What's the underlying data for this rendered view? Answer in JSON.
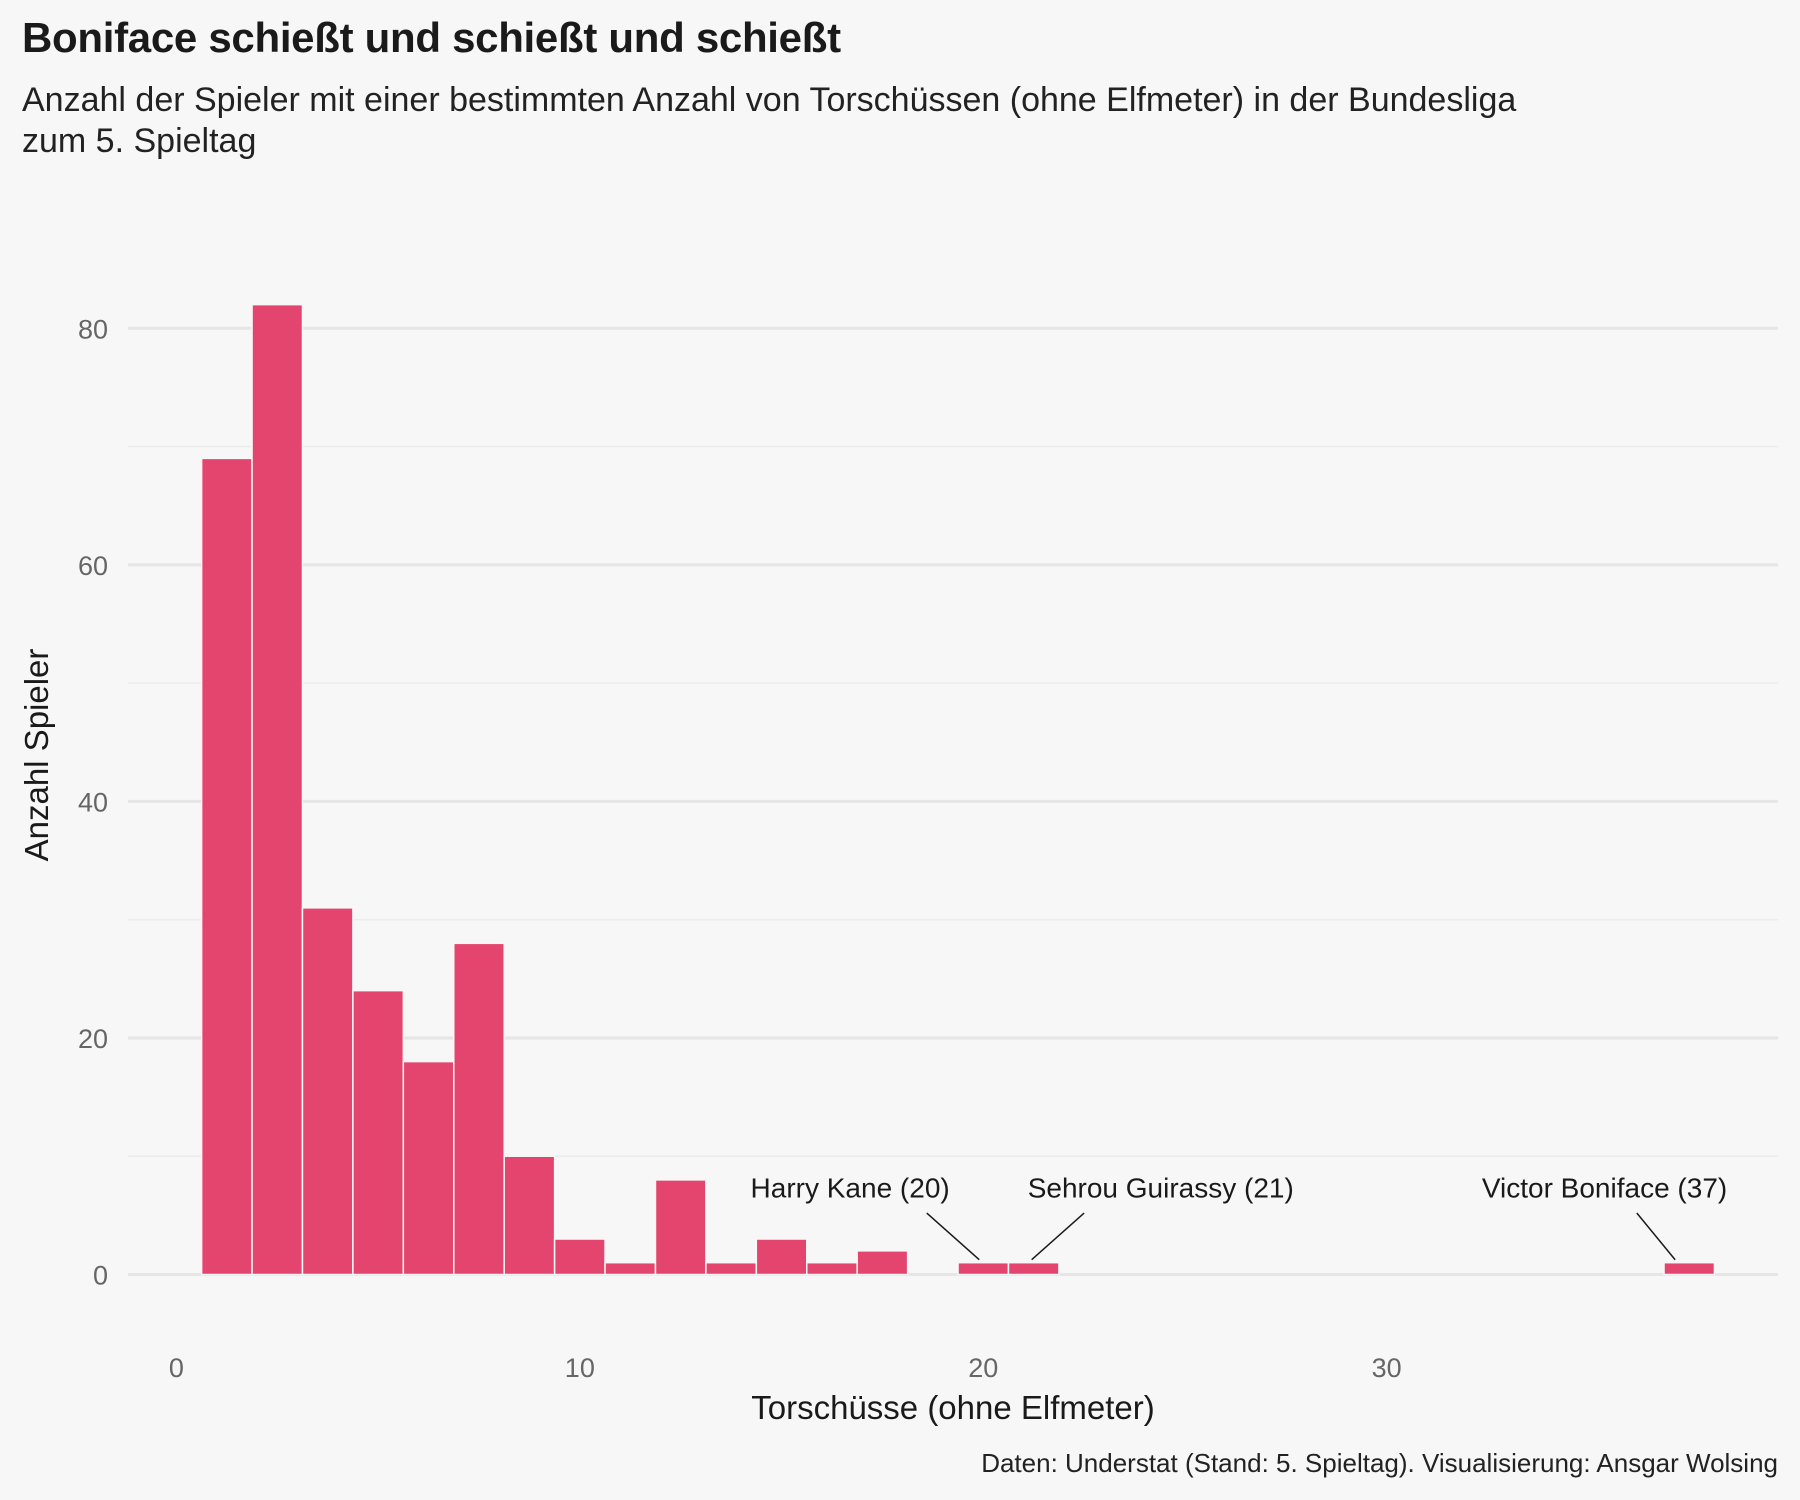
{
  "chart_data": {
    "type": "bar",
    "title": "Boniface schießt und schießt und schießt",
    "subtitle": "Anzahl der Spieler mit einer bestimmten Anzahl von Torschüssen (ohne Elfmeter) in der Bundesliga zum 5. Spieltag",
    "xlabel": "Torschüsse (ohne Elfmeter)",
    "ylabel": "Anzahl Spieler",
    "caption": "Daten: Understat (Stand: 5. Spieltag). Visualisierung: Ansgar Wolsing",
    "xlim": [
      -1.2,
      39.7
    ],
    "ylim": [
      -3,
      90
    ],
    "x_ticks": [
      0,
      10,
      20,
      30
    ],
    "y_ticks": [
      0,
      20,
      40,
      60,
      80
    ],
    "y_minor": [
      10,
      30,
      50,
      70
    ],
    "grid": true,
    "bin_width": 1.25,
    "bars": [
      {
        "start": 0.625,
        "end": 1.875,
        "count": 69
      },
      {
        "start": 1.875,
        "end": 3.125,
        "count": 82
      },
      {
        "start": 3.125,
        "end": 4.375,
        "count": 31
      },
      {
        "start": 4.375,
        "end": 5.625,
        "count": 24
      },
      {
        "start": 5.625,
        "end": 6.875,
        "count": 18
      },
      {
        "start": 6.875,
        "end": 8.125,
        "count": 28
      },
      {
        "start": 8.125,
        "end": 9.375,
        "count": 10
      },
      {
        "start": 9.375,
        "end": 10.625,
        "count": 3
      },
      {
        "start": 10.625,
        "end": 11.875,
        "count": 1
      },
      {
        "start": 11.875,
        "end": 13.125,
        "count": 8
      },
      {
        "start": 13.125,
        "end": 14.375,
        "count": 1
      },
      {
        "start": 14.375,
        "end": 15.625,
        "count": 3
      },
      {
        "start": 15.625,
        "end": 16.875,
        "count": 1
      },
      {
        "start": 16.875,
        "end": 18.125,
        "count": 2
      },
      {
        "start": 18.125,
        "end": 19.375,
        "count": 0
      },
      {
        "start": 19.375,
        "end": 20.625,
        "count": 1
      },
      {
        "start": 20.625,
        "end": 21.875,
        "count": 1
      },
      {
        "start": 36.875,
        "end": 38.125,
        "count": 1
      }
    ],
    "annotations": [
      {
        "label": "Harry Kane (20)",
        "x": 20,
        "y": 1
      },
      {
        "label": "Sehrou Guirassy (21)",
        "x": 21,
        "y": 1
      },
      {
        "label": "Victor Boniface (37)",
        "x": 37,
        "y": 1
      }
    ]
  }
}
